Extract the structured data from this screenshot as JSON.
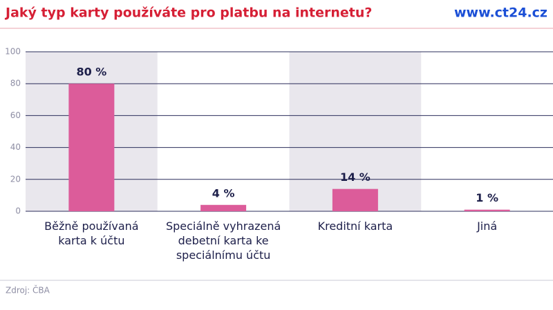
{
  "chart_data": {
    "type": "bar",
    "title": "Jaký typ karty používáte pro platbu na internetu?",
    "site": "www.ct24.cz",
    "source": "Zdroj: ČBA",
    "categories": [
      "Běžně používaná karta k účtu",
      "Speciálně vyhrazená debetní karta ke speciálnímu účtu",
      "Kreditní karta",
      "Jiná"
    ],
    "values": [
      80,
      4,
      14,
      1
    ],
    "value_labels": [
      "80 %",
      "4 %",
      "14 %",
      "1 %"
    ],
    "color": "#dc5c9a",
    "ylim": [
      0,
      100
    ],
    "yticks": [
      0,
      20,
      40,
      60,
      80,
      100
    ],
    "grid": true
  }
}
